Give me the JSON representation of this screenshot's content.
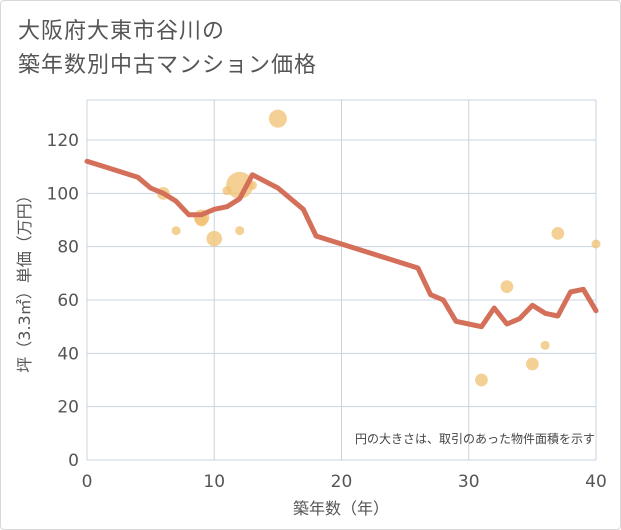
{
  "title_line1": "大阪府大東市谷川の",
  "title_line2": "築年数別中古マンション価格",
  "chart_data": {
    "type": "scatter",
    "title": "大阪府大東市谷川の築年数別中古マンション価格",
    "xlabel": "築年数（年）",
    "ylabel": "坪（3.3㎡）単価（万円）",
    "xlim": [
      0,
      40
    ],
    "ylim": [
      0,
      135
    ],
    "xticks": [
      0,
      10,
      20,
      30,
      40
    ],
    "yticks": [
      0,
      20,
      40,
      60,
      80,
      100,
      120
    ],
    "grid": true,
    "note": "円の大きさは、取引のあった物件面積を示す",
    "colors": {
      "bubble": "#f0c070",
      "line": "#d4705a",
      "grid": "#c8d4e0"
    },
    "bubbles": [
      {
        "x": 6,
        "y": 100,
        "size": 2
      },
      {
        "x": 7,
        "y": 86,
        "size": 1
      },
      {
        "x": 9,
        "y": 91,
        "size": 3
      },
      {
        "x": 9,
        "y": 90,
        "size": 2
      },
      {
        "x": 10,
        "y": 83,
        "size": 3
      },
      {
        "x": 11,
        "y": 101,
        "size": 1
      },
      {
        "x": 12,
        "y": 103,
        "size": 9
      },
      {
        "x": 12,
        "y": 86,
        "size": 1
      },
      {
        "x": 13,
        "y": 103,
        "size": 1
      },
      {
        "x": 15,
        "y": 128,
        "size": 4
      },
      {
        "x": 31,
        "y": 30,
        "size": 2
      },
      {
        "x": 33,
        "y": 65,
        "size": 2
      },
      {
        "x": 35,
        "y": 36,
        "size": 2
      },
      {
        "x": 36,
        "y": 43,
        "size": 1
      },
      {
        "x": 37,
        "y": 85,
        "size": 2
      },
      {
        "x": 40,
        "y": 81,
        "size": 1
      }
    ],
    "line": {
      "x": [
        0,
        2,
        4,
        5,
        6,
        7,
        8,
        9,
        10,
        11,
        12,
        13,
        15,
        17,
        18,
        20,
        22,
        24,
        26,
        27,
        28,
        29,
        30,
        31,
        32,
        33,
        34,
        35,
        36,
        37,
        38,
        39,
        40
      ],
      "y": [
        112,
        109,
        106,
        102,
        100,
        97,
        92,
        92,
        94,
        95,
        98,
        107,
        102,
        94,
        84,
        81,
        78,
        75,
        72,
        62,
        60,
        52,
        51,
        50,
        57,
        51,
        53,
        58,
        55,
        54,
        63,
        64,
        56
      ]
    }
  }
}
